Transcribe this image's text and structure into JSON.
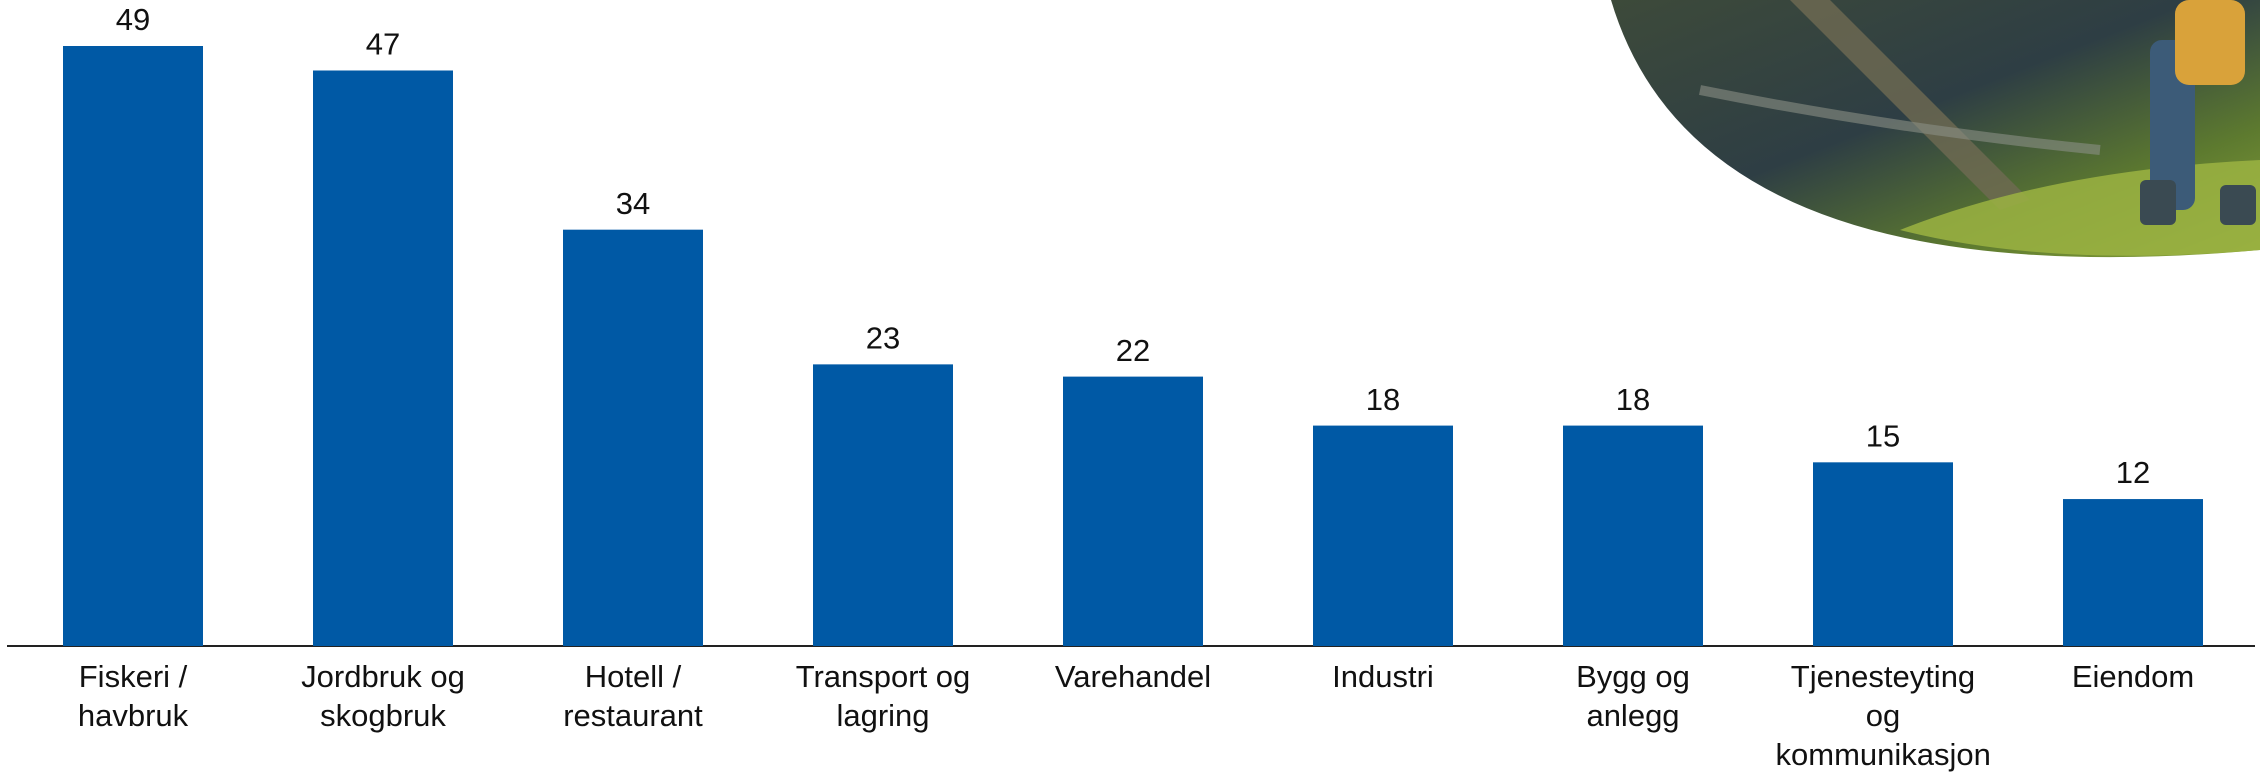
{
  "chart_data": {
    "type": "bar",
    "categories": [
      "Fiskeri / havbruk",
      "Jordbruk og skogbruk",
      "Hotell / restaurant",
      "Transport og lagring",
      "Varehandel",
      "Industri",
      "Bygg og anlegg",
      "Tjenesteyting og kommunikasjon",
      "Eiendom"
    ],
    "values": [
      49,
      47,
      34,
      23,
      22,
      18,
      18,
      15,
      12
    ],
    "color": "#0059a5"
  }
}
